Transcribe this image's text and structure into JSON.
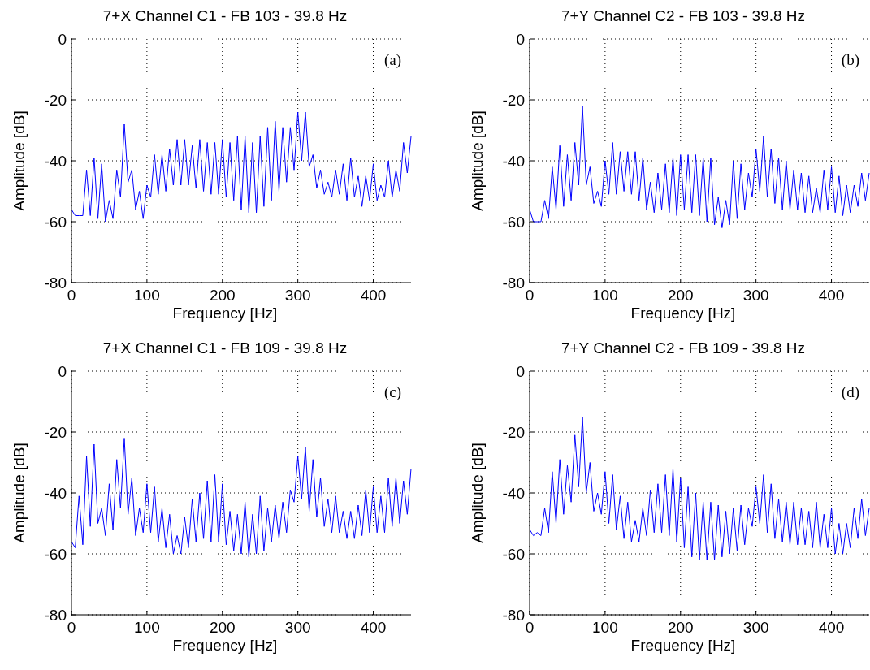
{
  "chart_data": [
    {
      "type": "line",
      "title": "7+X Channel C1  - FB 103 - 39.8 Hz",
      "xlabel": "Frequency [Hz]",
      "ylabel": "Amplitude [dB]",
      "annotations": [
        "(a)"
      ],
      "xlim": [
        0,
        450
      ],
      "xticks": [
        0,
        100,
        200,
        300,
        400
      ],
      "ylim": [
        -80,
        0
      ],
      "yticks": [
        -80,
        -60,
        -40,
        -20,
        0
      ],
      "grid": true,
      "x": [
        0,
        5,
        10,
        15,
        20,
        25,
        30,
        35,
        40,
        45,
        50,
        55,
        60,
        65,
        70,
        75,
        80,
        85,
        90,
        95,
        100,
        105,
        110,
        115,
        120,
        125,
        130,
        135,
        140,
        145,
        150,
        155,
        160,
        165,
        170,
        175,
        180,
        185,
        190,
        195,
        200,
        205,
        210,
        215,
        220,
        225,
        230,
        235,
        240,
        245,
        250,
        255,
        260,
        265,
        270,
        275,
        280,
        285,
        290,
        295,
        300,
        305,
        310,
        315,
        320,
        325,
        330,
        335,
        340,
        345,
        350,
        355,
        360,
        365,
        370,
        375,
        380,
        385,
        390,
        395,
        400,
        405,
        410,
        415,
        420,
        425,
        430,
        435,
        440,
        445,
        450
      ],
      "series": [
        {
          "color": "#0000ff",
          "values": [
            -56,
            -58,
            -58,
            -58,
            -43,
            -58,
            -39,
            -59,
            -41,
            -60,
            -53,
            -59,
            -43,
            -52,
            -28,
            -47,
            -43,
            -56,
            -50,
            -59,
            -48,
            -52,
            -38,
            -51,
            -38,
            -50,
            -36,
            -48,
            -33,
            -48,
            -33,
            -48,
            -35,
            -49,
            -33,
            -50,
            -34,
            -51,
            -34,
            -51,
            -33,
            -52,
            -34,
            -53,
            -32,
            -56,
            -32,
            -57,
            -34,
            -57,
            -32,
            -55,
            -29,
            -53,
            -27,
            -50,
            -29,
            -47,
            -29,
            -43,
            -24,
            -40,
            -24,
            -42,
            -38,
            -49,
            -43,
            -51,
            -47,
            -52,
            -43,
            -51,
            -41,
            -53,
            -39,
            -52,
            -45,
            -55,
            -45,
            -53,
            -41,
            -53,
            -48,
            -52,
            -40,
            -52,
            -43,
            -50,
            -34,
            -44,
            -32
          ]
        }
      ]
    },
    {
      "type": "line",
      "title": "7+Y Channel C2  - FB 103 - 39.8 Hz",
      "xlabel": "Frequency [Hz]",
      "ylabel": "Amplitude [dB]",
      "annotations": [
        "(b)"
      ],
      "xlim": [
        0,
        450
      ],
      "xticks": [
        0,
        100,
        200,
        300,
        400
      ],
      "ylim": [
        -80,
        0
      ],
      "yticks": [
        -80,
        -60,
        -40,
        -20,
        0
      ],
      "grid": true,
      "x": [
        0,
        5,
        10,
        15,
        20,
        25,
        30,
        35,
        40,
        45,
        50,
        55,
        60,
        65,
        70,
        75,
        80,
        85,
        90,
        95,
        100,
        105,
        110,
        115,
        120,
        125,
        130,
        135,
        140,
        145,
        150,
        155,
        160,
        165,
        170,
        175,
        180,
        185,
        190,
        195,
        200,
        205,
        210,
        215,
        220,
        225,
        230,
        235,
        240,
        245,
        250,
        255,
        260,
        265,
        270,
        275,
        280,
        285,
        290,
        295,
        300,
        305,
        310,
        315,
        320,
        325,
        330,
        335,
        340,
        345,
        350,
        355,
        360,
        365,
        370,
        375,
        380,
        385,
        390,
        395,
        400,
        405,
        410,
        415,
        420,
        425,
        430,
        435,
        440,
        445,
        450
      ],
      "series": [
        {
          "color": "#0000ff",
          "values": [
            -56,
            -60,
            -60,
            -60,
            -53,
            -59,
            -42,
            -56,
            -35,
            -55,
            -38,
            -53,
            -34,
            -48,
            -22,
            -48,
            -42,
            -54,
            -50,
            -55,
            -40,
            -51,
            -34,
            -51,
            -37,
            -50,
            -37,
            -51,
            -37,
            -53,
            -39,
            -56,
            -47,
            -57,
            -44,
            -56,
            -41,
            -57,
            -39,
            -58,
            -38,
            -56,
            -38,
            -57,
            -38,
            -58,
            -39,
            -60,
            -39,
            -61,
            -52,
            -62,
            -53,
            -61,
            -40,
            -59,
            -41,
            -56,
            -44,
            -52,
            -36,
            -50,
            -32,
            -52,
            -36,
            -54,
            -39,
            -56,
            -40,
            -56,
            -43,
            -56,
            -44,
            -57,
            -45,
            -57,
            -49,
            -57,
            -43,
            -56,
            -42,
            -57,
            -45,
            -58,
            -48,
            -57,
            -48,
            -55,
            -44,
            -53,
            -44
          ]
        }
      ]
    },
    {
      "type": "line",
      "title": "7+X Channel C1  - FB 109 - 39.8 Hz",
      "xlabel": "Frequency [Hz]",
      "ylabel": "Amplitude [dB]",
      "annotations": [
        "(c)"
      ],
      "xlim": [
        0,
        450
      ],
      "xticks": [
        0,
        100,
        200,
        300,
        400
      ],
      "ylim": [
        -80,
        0
      ],
      "yticks": [
        -80,
        -60,
        -40,
        -20,
        0
      ],
      "grid": true,
      "x": [
        0,
        5,
        10,
        15,
        20,
        25,
        30,
        35,
        40,
        45,
        50,
        55,
        60,
        65,
        70,
        75,
        80,
        85,
        90,
        95,
        100,
        105,
        110,
        115,
        120,
        125,
        130,
        135,
        140,
        145,
        150,
        155,
        160,
        165,
        170,
        175,
        180,
        185,
        190,
        195,
        200,
        205,
        210,
        215,
        220,
        225,
        230,
        235,
        240,
        245,
        250,
        255,
        260,
        265,
        270,
        275,
        280,
        285,
        290,
        295,
        300,
        305,
        310,
        315,
        320,
        325,
        330,
        335,
        340,
        345,
        350,
        355,
        360,
        365,
        370,
        375,
        380,
        385,
        390,
        395,
        400,
        405,
        410,
        415,
        420,
        425,
        430,
        435,
        440,
        445,
        450
      ],
      "series": [
        {
          "color": "#0000ff",
          "values": [
            -56,
            -58,
            -41,
            -57,
            -28,
            -51,
            -24,
            -50,
            -45,
            -54,
            -37,
            -52,
            -29,
            -45,
            -22,
            -47,
            -35,
            -54,
            -45,
            -53,
            -37,
            -53,
            -38,
            -56,
            -45,
            -58,
            -47,
            -60,
            -54,
            -60,
            -48,
            -58,
            -42,
            -56,
            -40,
            -55,
            -36,
            -56,
            -34,
            -56,
            -37,
            -57,
            -46,
            -59,
            -47,
            -60,
            -43,
            -61,
            -47,
            -60,
            -41,
            -59,
            -45,
            -56,
            -44,
            -55,
            -43,
            -53,
            -39,
            -43,
            -28,
            -42,
            -25,
            -46,
            -29,
            -48,
            -35,
            -51,
            -42,
            -53,
            -41,
            -53,
            -46,
            -55,
            -46,
            -55,
            -44,
            -54,
            -39,
            -53,
            -38,
            -53,
            -41,
            -53,
            -35,
            -51,
            -35,
            -50,
            -36,
            -47,
            -32
          ]
        }
      ]
    },
    {
      "type": "line",
      "title": "7+Y Channel C2  - FB 109 - 39.8 Hz",
      "xlabel": "Frequency [Hz]",
      "ylabel": "Amplitude [dB]",
      "annotations": [
        "(d)"
      ],
      "xlim": [
        0,
        450
      ],
      "xticks": [
        0,
        100,
        200,
        300,
        400
      ],
      "ylim": [
        -80,
        0
      ],
      "yticks": [
        -80,
        -60,
        -40,
        -20,
        0
      ],
      "grid": true,
      "x": [
        0,
        5,
        10,
        15,
        20,
        25,
        30,
        35,
        40,
        45,
        50,
        55,
        60,
        65,
        70,
        75,
        80,
        85,
        90,
        95,
        100,
        105,
        110,
        115,
        120,
        125,
        130,
        135,
        140,
        145,
        150,
        155,
        160,
        165,
        170,
        175,
        180,
        185,
        190,
        195,
        200,
        205,
        210,
        215,
        220,
        225,
        230,
        235,
        240,
        245,
        250,
        255,
        260,
        265,
        270,
        275,
        280,
        285,
        290,
        295,
        300,
        305,
        310,
        315,
        320,
        325,
        330,
        335,
        340,
        345,
        350,
        355,
        360,
        365,
        370,
        375,
        380,
        385,
        390,
        395,
        400,
        405,
        410,
        415,
        420,
        425,
        430,
        435,
        440,
        445,
        450
      ],
      "series": [
        {
          "color": "#0000ff",
          "values": [
            -52,
            -54,
            -53,
            -54,
            -45,
            -53,
            -33,
            -50,
            -29,
            -47,
            -31,
            -43,
            -21,
            -38,
            -15,
            -40,
            -30,
            -46,
            -40,
            -47,
            -33,
            -50,
            -34,
            -52,
            -41,
            -55,
            -43,
            -56,
            -49,
            -56,
            -45,
            -54,
            -39,
            -53,
            -37,
            -53,
            -34,
            -54,
            -32,
            -56,
            -35,
            -58,
            -38,
            -61,
            -40,
            -62,
            -43,
            -62,
            -43,
            -62,
            -44,
            -61,
            -46,
            -60,
            -45,
            -59,
            -44,
            -57,
            -45,
            -51,
            -38,
            -50,
            -34,
            -53,
            -37,
            -55,
            -42,
            -56,
            -43,
            -57,
            -43,
            -57,
            -45,
            -57,
            -46,
            -58,
            -43,
            -58,
            -47,
            -58,
            -45,
            -60,
            -50,
            -60,
            -50,
            -58,
            -45,
            -55,
            -42,
            -54,
            -45
          ]
        }
      ]
    }
  ]
}
